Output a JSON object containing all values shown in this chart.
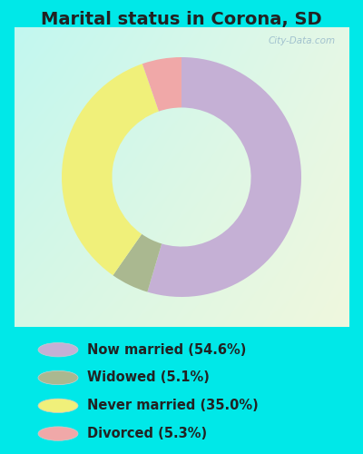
{
  "title": "Marital status in Corona, SD",
  "slices": [
    54.6,
    5.1,
    35.0,
    5.3
  ],
  "labels": [
    "Now married (54.6%)",
    "Widowed (5.1%)",
    "Never married (35.0%)",
    "Divorced (5.3%)"
  ],
  "colors": [
    "#c5b0d5",
    "#aab890",
    "#f0f07a",
    "#f0a8a8"
  ],
  "legend_colors": [
    "#c5b0d5",
    "#aab890",
    "#f0f07a",
    "#f0a8a8"
  ],
  "bg_color_outer": "#00e8e8",
  "title_fontsize": 14,
  "legend_fontsize": 10.5,
  "watermark": "City-Data.com",
  "donut_width": 0.42,
  "start_angle": 90
}
